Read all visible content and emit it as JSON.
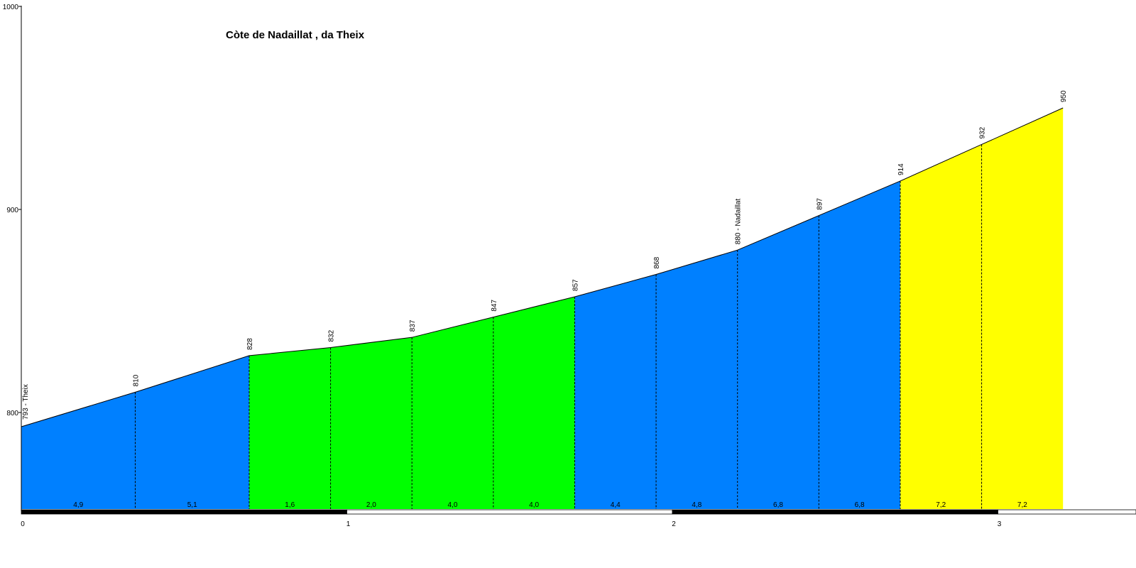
{
  "chart_data": {
    "type": "area",
    "title": "Còte de Nadaillat , da Theix",
    "xlabel": "",
    "ylabel": "",
    "xlim": [
      0,
      3.4
    ],
    "ylim": [
      750,
      1000
    ],
    "x_ticks": [
      0,
      1,
      2,
      3
    ],
    "x_tick_labels": [
      "0",
      "1",
      "2",
      "3"
    ],
    "y_ticks": [
      800,
      900,
      1000
    ],
    "y_tick_labels": [
      "800",
      "900",
      "1000"
    ],
    "points": [
      {
        "x": 0.0,
        "y": 793,
        "label": "793 - Theix"
      },
      {
        "x": 0.35,
        "y": 810,
        "label": "810"
      },
      {
        "x": 0.7,
        "y": 828,
        "label": "828"
      },
      {
        "x": 0.95,
        "y": 832,
        "label": "832"
      },
      {
        "x": 1.2,
        "y": 837,
        "label": "837"
      },
      {
        "x": 1.45,
        "y": 847,
        "label": "847"
      },
      {
        "x": 1.7,
        "y": 857,
        "label": "857"
      },
      {
        "x": 1.95,
        "y": 868,
        "label": "868"
      },
      {
        "x": 2.2,
        "y": 880,
        "label": "880 - Nadaillat"
      },
      {
        "x": 2.45,
        "y": 897,
        "label": "897"
      },
      {
        "x": 2.7,
        "y": 914,
        "label": "914"
      },
      {
        "x": 2.95,
        "y": 932,
        "label": "932"
      },
      {
        "x": 3.2,
        "y": 950,
        "label": "950"
      }
    ],
    "segments": [
      {
        "gradient": "4,9",
        "color": "#0080ff"
      },
      {
        "gradient": "5,1",
        "color": "#0080ff"
      },
      {
        "gradient": "1,6",
        "color": "#00ff00"
      },
      {
        "gradient": "2,0",
        "color": "#00ff00"
      },
      {
        "gradient": "4,0",
        "color": "#00ff00"
      },
      {
        "gradient": "4,0",
        "color": "#00ff00"
      },
      {
        "gradient": "4,4",
        "color": "#0080ff"
      },
      {
        "gradient": "4,8",
        "color": "#0080ff"
      },
      {
        "gradient": "6,8",
        "color": "#0080ff"
      },
      {
        "gradient": "6,8",
        "color": "#0080ff"
      },
      {
        "gradient": "7,2",
        "color": "#ffff00"
      },
      {
        "gradient": "7,2",
        "color": "#ffff00"
      }
    ],
    "grid": false,
    "legend": "none"
  }
}
